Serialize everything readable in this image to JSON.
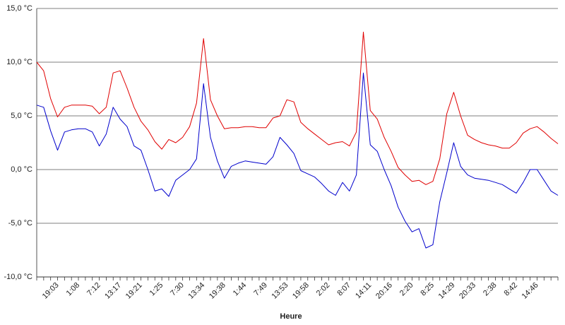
{
  "chart_data": {
    "type": "line",
    "x_label": "Heure",
    "categories": [
      null,
      null,
      null,
      "19:03",
      null,
      null,
      "1:08",
      null,
      null,
      "7:12",
      null,
      null,
      "13:17",
      null,
      null,
      "19:21",
      null,
      null,
      "1:25",
      null,
      null,
      "7:30",
      null,
      null,
      "13:34",
      null,
      null,
      "19:38",
      null,
      null,
      "1:44",
      null,
      null,
      "7:49",
      null,
      null,
      "13:53",
      null,
      null,
      "19:58",
      null,
      null,
      "2:02",
      null,
      null,
      "8:07",
      null,
      null,
      "14:11",
      null,
      null,
      "20:16",
      null,
      null,
      "2:20",
      null,
      null,
      "8:25",
      null,
      null,
      "14:29",
      null,
      null,
      "20:33",
      null,
      null,
      "2:38",
      null,
      null,
      "8:42",
      null,
      null,
      "14:46",
      null,
      null,
      null
    ],
    "series": [
      {
        "color": "#e00000",
        "values": [
          10,
          9.2,
          6.6,
          4.9,
          5.8,
          6,
          6,
          6,
          5.9,
          5.2,
          5.8,
          9,
          9.2,
          7.6,
          5.8,
          4.5,
          3.7,
          2.6,
          1.9,
          2.8,
          2.5,
          3,
          4,
          6.2,
          12.2,
          6.5,
          5,
          3.8,
          3.9,
          3.9,
          4,
          4,
          3.9,
          3.9,
          4.8,
          5,
          6.5,
          6.3,
          4.4,
          3.8,
          3.3,
          2.8,
          2.3,
          2.5,
          2.6,
          2.2,
          3.5,
          12.8,
          5.5,
          4.7,
          3,
          1.7,
          0.2,
          -0.5,
          -1.1,
          -1,
          -1.4,
          -1.1,
          1,
          5.2,
          7.2,
          5,
          3.2,
          2.8,
          2.5,
          2.3,
          2.2,
          2,
          2,
          2.5,
          3.4,
          3.8,
          4,
          3.5,
          2.9,
          2.4
        ]
      },
      {
        "color": "#0000cc",
        "values": [
          6,
          5.8,
          3.6,
          1.8,
          3.5,
          3.7,
          3.8,
          3.8,
          3.5,
          2.2,
          3.3,
          5.8,
          4.7,
          4,
          2.2,
          1.8,
          0,
          -2,
          -1.8,
          -2.5,
          -1,
          -0.5,
          0,
          1,
          8,
          3,
          0.8,
          -0.8,
          0.3,
          0.6,
          0.8,
          0.7,
          0.6,
          0.5,
          1.2,
          3,
          2.3,
          1.5,
          -0.1,
          -0.4,
          -0.7,
          -1.3,
          -2,
          -2.4,
          -1.2,
          -2,
          -0.5,
          9,
          2.3,
          1.7,
          0,
          -1.5,
          -3.5,
          -4.8,
          -5.8,
          -5.5,
          -7.3,
          -7,
          -3,
          -0.3,
          2.5,
          0.3,
          -0.5,
          -0.8,
          -0.9,
          -1,
          -1.2,
          -1.4,
          -1.8,
          -2.2,
          -1.2,
          0,
          0,
          -1,
          -2,
          -2.4
        ]
      }
    ],
    "ylim": [
      -10,
      15
    ],
    "yticks": [
      {
        "value": -10,
        "label": "-10,0 °C"
      },
      {
        "value": -5,
        "label": "-5,0 °C"
      },
      {
        "value": 0,
        "label": "0,0 °C"
      },
      {
        "value": 5,
        "label": "5,0 °C"
      },
      {
        "value": 10,
        "label": "10,0 °C"
      },
      {
        "value": 15,
        "label": "15,0 °C"
      }
    ],
    "grid": true
  }
}
